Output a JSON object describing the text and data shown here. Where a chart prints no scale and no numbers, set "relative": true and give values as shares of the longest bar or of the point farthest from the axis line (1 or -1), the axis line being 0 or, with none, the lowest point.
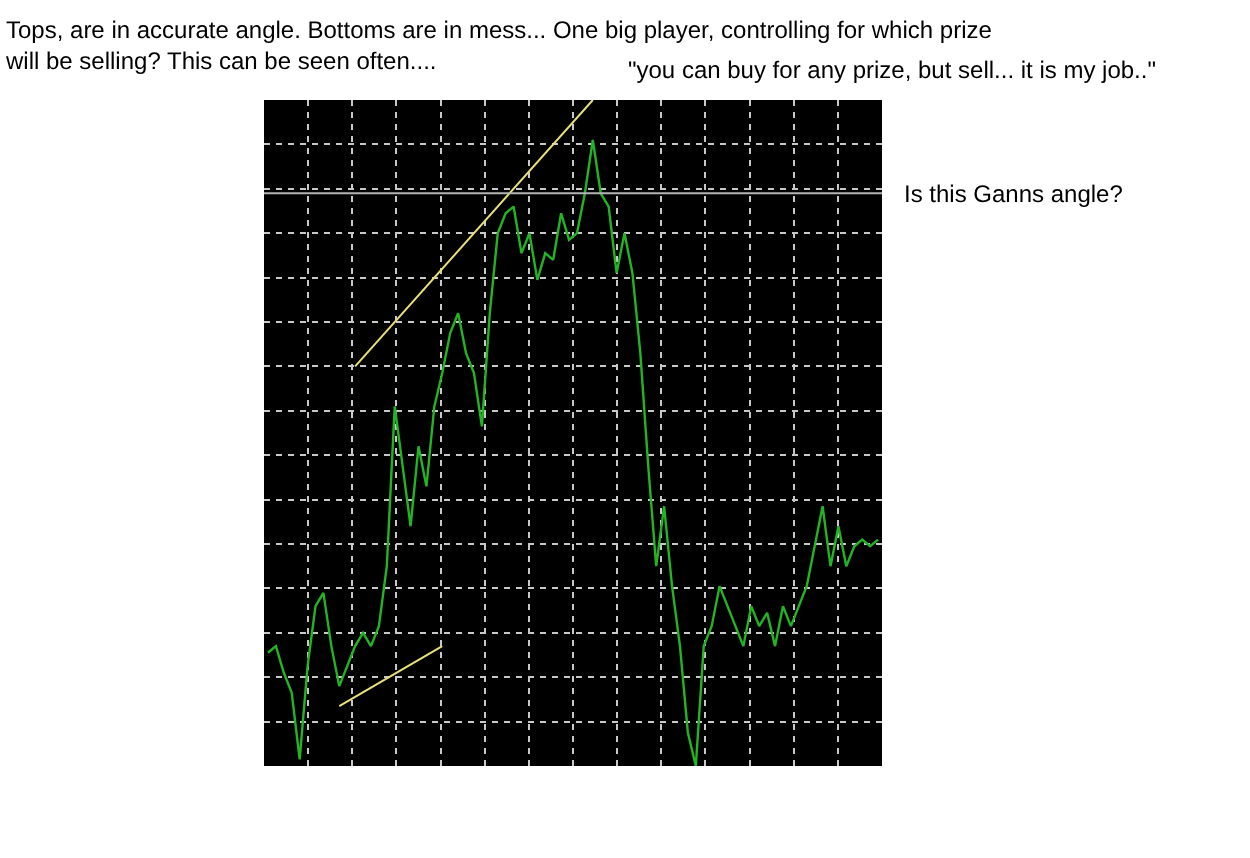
{
  "chart_data": {
    "type": "line",
    "relative": true,
    "title": "Tops, are in accurate angle. Bottoms are in mess... One big player, controlling for which prize will be selling? This can be seen often....",
    "annotations": [
      "\"you can buy for any prize, but sell... it is my job..\""
    ],
    "categories": [
      null,
      null,
      null,
      null,
      null,
      null,
      null,
      null,
      null,
      null,
      null,
      null,
      null,
      null,
      null,
      null,
      null,
      null,
      null,
      null,
      null,
      null,
      null,
      null,
      null,
      null,
      null,
      null,
      null,
      null,
      null,
      null,
      null,
      null,
      null,
      null,
      null,
      null,
      null,
      null,
      null,
      null,
      null,
      null,
      null,
      null,
      null,
      null,
      null,
      null,
      null,
      null,
      null,
      null,
      null,
      null,
      null,
      null,
      null,
      null,
      null,
      null,
      null,
      null,
      null,
      null,
      null,
      null,
      null,
      null,
      null,
      null,
      null,
      null,
      null,
      null,
      null,
      null
    ],
    "series": [
      {
        "color": "#22b422",
        "values": [
          0.17,
          0.18,
          0.14,
          0.11,
          0.01,
          0.15,
          0.24,
          0.26,
          0.18,
          0.12,
          0.15,
          0.18,
          0.2,
          0.18,
          0.21,
          0.3,
          0.54,
          0.45,
          0.36,
          0.48,
          0.42,
          0.54,
          0.59,
          0.65,
          0.68,
          0.62,
          0.59,
          0.51,
          0.68,
          0.8,
          0.83,
          0.84,
          0.77,
          0.8,
          0.73,
          0.77,
          0.76,
          0.83,
          0.79,
          0.8,
          0.86,
          0.94,
          0.86,
          0.84,
          0.74,
          0.8,
          0.74,
          0.62,
          0.45,
          0.3,
          0.39,
          0.27,
          0.18,
          0.05,
          0,
          0.18,
          0.21,
          0.27,
          0.24,
          0.21,
          0.18,
          0.24,
          0.21,
          0.23,
          0.18,
          0.24,
          0.21,
          0.24,
          0.27,
          0.33,
          0.39,
          0.3,
          0.36,
          0.3,
          0.33,
          0.34,
          0.33,
          0.34
        ]
      },
      {
        "type": "line",
        "color": "#e8e07a",
        "values": [
          null,
          null,
          null,
          null,
          null,
          null,
          null,
          null,
          null,
          null,
          null,
          0.6,
          null,
          null,
          null,
          null,
          null,
          null,
          null,
          null,
          null,
          null,
          null,
          null,
          null,
          null,
          null,
          null,
          null,
          null,
          null,
          null,
          null,
          null,
          null,
          null,
          null,
          null,
          null,
          null,
          null,
          1.0,
          null,
          null,
          null,
          null,
          null,
          null,
          null,
          null,
          null,
          null,
          null,
          null,
          null,
          null,
          null,
          null,
          null,
          null,
          null,
          null,
          null,
          null,
          null,
          null,
          null,
          null,
          null,
          null,
          null,
          null,
          null,
          null,
          null,
          null,
          null,
          null
        ]
      },
      {
        "type": "line",
        "color": "#e8e07a",
        "values": [
          null,
          null,
          null,
          null,
          null,
          null,
          null,
          null,
          null,
          0.09,
          null,
          null,
          null,
          null,
          null,
          null,
          null,
          null,
          null,
          null,
          null,
          null,
          0.18,
          null,
          null,
          null,
          null,
          null,
          null,
          null,
          null,
          null,
          null,
          null,
          null,
          null,
          null,
          null,
          null,
          null,
          null,
          null,
          null,
          null,
          null,
          null,
          null,
          null,
          null,
          null,
          null,
          null,
          null,
          null,
          null,
          null,
          null,
          null,
          null,
          null,
          null,
          null,
          null,
          null,
          null,
          null,
          null,
          null,
          null,
          null,
          null,
          null,
          null,
          null,
          null,
          null,
          null,
          null
        ]
      }
    ],
    "ref_lines": [
      {
        "axis": "y",
        "value": 0.86,
        "label": "Is this Ganns angle?",
        "color": "#b4b4b4"
      }
    ],
    "grid": true,
    "line_style": "solid",
    "marker": "none"
  }
}
